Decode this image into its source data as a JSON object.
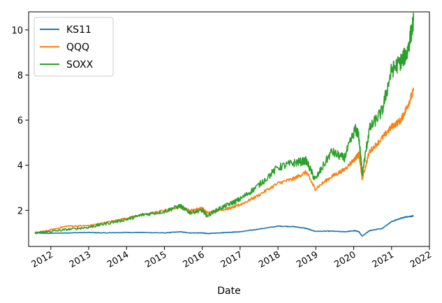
{
  "chart_data": {
    "type": "line",
    "title": "",
    "xlabel": "Date",
    "ylabel": "",
    "x_ticks": [
      "2012",
      "2013",
      "2014",
      "2015",
      "2016",
      "2017",
      "2018",
      "2019",
      "2020",
      "2021",
      "2022"
    ],
    "y_ticks": [
      2,
      4,
      6,
      8,
      10
    ],
    "xlim": [
      "2011-06-01",
      "2022-01-01"
    ],
    "ylim": [
      0.4,
      10.8
    ],
    "grid": false,
    "legend_position": "top-left",
    "dates": [
      "2011-08-01",
      "2011-12-01",
      "2012-06-01",
      "2013-01-01",
      "2013-06-01",
      "2014-01-01",
      "2014-06-01",
      "2015-01-01",
      "2015-06-01",
      "2015-09-01",
      "2016-01-01",
      "2016-02-15",
      "2016-06-01",
      "2016-10-01",
      "2017-01-01",
      "2017-06-01",
      "2018-01-01",
      "2018-06-01",
      "2018-10-01",
      "2018-12-25",
      "2019-06-01",
      "2019-10-01",
      "2020-01-15",
      "2020-02-20",
      "2020-03-23",
      "2020-06-01",
      "2020-10-01",
      "2021-01-01",
      "2021-04-01",
      "2021-06-01",
      "2021-08-01"
    ],
    "series": [
      {
        "name": "KS11",
        "color": "#1f77b4",
        "values": [
          1.0,
          0.98,
          1.0,
          1.02,
          1.0,
          1.02,
          1.02,
          1.0,
          1.05,
          1.0,
          1.0,
          0.97,
          1.0,
          1.03,
          1.05,
          1.15,
          1.3,
          1.28,
          1.2,
          1.07,
          1.08,
          1.05,
          1.1,
          1.05,
          0.86,
          1.1,
          1.2,
          1.5,
          1.65,
          1.72,
          1.75
        ]
      },
      {
        "name": "QQQ",
        "color": "#ff7f0e",
        "values": [
          1.0,
          1.1,
          1.3,
          1.32,
          1.45,
          1.65,
          1.8,
          2.0,
          2.15,
          2.0,
          2.1,
          1.9,
          2.0,
          2.1,
          2.25,
          2.6,
          3.2,
          3.4,
          3.7,
          2.95,
          3.5,
          3.8,
          4.3,
          4.5,
          3.4,
          4.6,
          5.2,
          5.7,
          6.0,
          6.6,
          7.3
        ]
      },
      {
        "name": "SOXX",
        "color": "#2ca02c",
        "values": [
          1.0,
          1.05,
          1.15,
          1.25,
          1.4,
          1.6,
          1.8,
          1.95,
          2.2,
          1.9,
          2.0,
          1.75,
          2.05,
          2.3,
          2.5,
          3.0,
          3.9,
          4.1,
          4.2,
          3.35,
          4.6,
          4.3,
          5.6,
          5.3,
          3.6,
          5.6,
          6.4,
          8.2,
          8.6,
          9.0,
          10.4
        ]
      }
    ]
  }
}
